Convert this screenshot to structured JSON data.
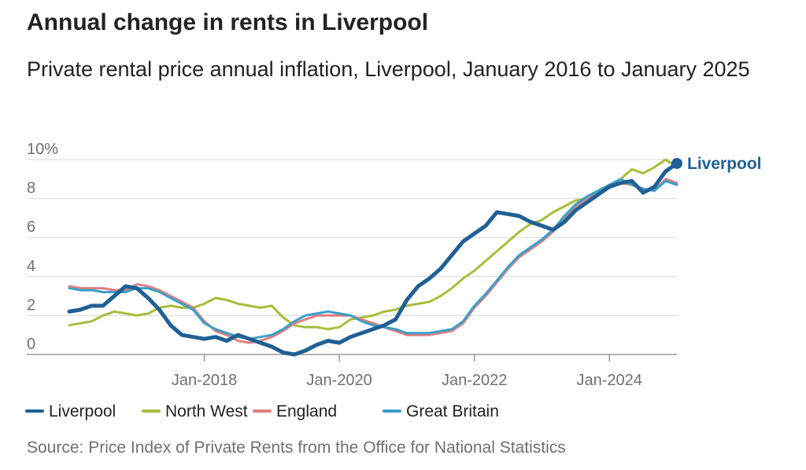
{
  "header": {
    "title": "Annual change in rents in Liverpool",
    "subtitle": "Private rental price annual inflation, Liverpool, January 2016 to January 2025"
  },
  "footer": {
    "source": "Source: Price Index of Private Rents from the Office for National Statistics"
  },
  "chart_data": {
    "type": "line",
    "title": "Annual change in rents in Liverpool",
    "subtitle": "Private rental price annual inflation, Liverpool, January 2016 to January 2025",
    "xlabel": "",
    "ylabel": "",
    "x_range": [
      "2016-01",
      "2025-01"
    ],
    "ylim": [
      0,
      10
    ],
    "y_ticks": [
      0,
      2,
      4,
      6,
      8,
      10
    ],
    "y_tick_labels": [
      "0",
      "2",
      "4",
      "6",
      "8",
      "10%"
    ],
    "x_ticks": [
      "2018-01",
      "2020-01",
      "2022-01",
      "2024-01"
    ],
    "x_tick_labels": [
      "Jan-2018",
      "Jan-2020",
      "Jan-2022",
      "Jan-2024"
    ],
    "grid": "horizontal",
    "legend": "bottom",
    "end_label": "Liverpool",
    "series": [
      {
        "name": "Liverpool",
        "color": "#206095",
        "points": [
          [
            "2016-01",
            2.2
          ],
          [
            "2016-03",
            2.3
          ],
          [
            "2016-05",
            2.5
          ],
          [
            "2016-07",
            2.5
          ],
          [
            "2016-09",
            3.0
          ],
          [
            "2016-11",
            3.5
          ],
          [
            "2017-01",
            3.4
          ],
          [
            "2017-03",
            2.9
          ],
          [
            "2017-05",
            2.3
          ],
          [
            "2017-07",
            1.5
          ],
          [
            "2017-09",
            1.0
          ],
          [
            "2017-11",
            0.9
          ],
          [
            "2018-01",
            0.8
          ],
          [
            "2018-03",
            0.9
          ],
          [
            "2018-05",
            0.7
          ],
          [
            "2018-07",
            1.0
          ],
          [
            "2018-09",
            0.8
          ],
          [
            "2018-11",
            0.6
          ],
          [
            "2019-01",
            0.4
          ],
          [
            "2019-03",
            0.1
          ],
          [
            "2019-05",
            0.0
          ],
          [
            "2019-07",
            0.2
          ],
          [
            "2019-09",
            0.5
          ],
          [
            "2019-11",
            0.7
          ],
          [
            "2020-01",
            0.6
          ],
          [
            "2020-03",
            0.9
          ],
          [
            "2020-05",
            1.1
          ],
          [
            "2020-07",
            1.3
          ],
          [
            "2020-09",
            1.5
          ],
          [
            "2020-11",
            1.8
          ],
          [
            "2021-01",
            2.8
          ],
          [
            "2021-03",
            3.5
          ],
          [
            "2021-05",
            3.9
          ],
          [
            "2021-07",
            4.4
          ],
          [
            "2021-09",
            5.1
          ],
          [
            "2021-11",
            5.8
          ],
          [
            "2022-01",
            6.2
          ],
          [
            "2022-03",
            6.6
          ],
          [
            "2022-05",
            7.3
          ],
          [
            "2022-07",
            7.2
          ],
          [
            "2022-09",
            7.1
          ],
          [
            "2022-11",
            6.8
          ],
          [
            "2023-01",
            6.6
          ],
          [
            "2023-03",
            6.4
          ],
          [
            "2023-05",
            6.8
          ],
          [
            "2023-07",
            7.4
          ],
          [
            "2023-09",
            7.8
          ],
          [
            "2023-11",
            8.2
          ],
          [
            "2024-01",
            8.6
          ],
          [
            "2024-03",
            8.8
          ],
          [
            "2024-05",
            8.9
          ],
          [
            "2024-07",
            8.3
          ],
          [
            "2024-09",
            8.6
          ],
          [
            "2024-11",
            9.4
          ],
          [
            "2025-01",
            9.8
          ]
        ]
      },
      {
        "name": "North West",
        "color": "#a8bd3a",
        "points": [
          [
            "2016-01",
            1.5
          ],
          [
            "2016-03",
            1.6
          ],
          [
            "2016-05",
            1.7
          ],
          [
            "2016-07",
            2.0
          ],
          [
            "2016-09",
            2.2
          ],
          [
            "2016-11",
            2.1
          ],
          [
            "2017-01",
            2.0
          ],
          [
            "2017-03",
            2.1
          ],
          [
            "2017-05",
            2.4
          ],
          [
            "2017-07",
            2.5
          ],
          [
            "2017-09",
            2.4
          ],
          [
            "2017-11",
            2.4
          ],
          [
            "2018-01",
            2.6
          ],
          [
            "2018-03",
            2.9
          ],
          [
            "2018-05",
            2.8
          ],
          [
            "2018-07",
            2.6
          ],
          [
            "2018-09",
            2.5
          ],
          [
            "2018-11",
            2.4
          ],
          [
            "2019-01",
            2.5
          ],
          [
            "2019-03",
            1.9
          ],
          [
            "2019-05",
            1.5
          ],
          [
            "2019-07",
            1.4
          ],
          [
            "2019-09",
            1.4
          ],
          [
            "2019-11",
            1.3
          ],
          [
            "2020-01",
            1.4
          ],
          [
            "2020-03",
            1.8
          ],
          [
            "2020-05",
            1.9
          ],
          [
            "2020-07",
            2.0
          ],
          [
            "2020-09",
            2.2
          ],
          [
            "2020-11",
            2.3
          ],
          [
            "2021-01",
            2.5
          ],
          [
            "2021-03",
            2.6
          ],
          [
            "2021-05",
            2.7
          ],
          [
            "2021-07",
            3.0
          ],
          [
            "2021-09",
            3.4
          ],
          [
            "2021-11",
            3.9
          ],
          [
            "2022-01",
            4.3
          ],
          [
            "2022-03",
            4.8
          ],
          [
            "2022-05",
            5.3
          ],
          [
            "2022-07",
            5.8
          ],
          [
            "2022-09",
            6.3
          ],
          [
            "2022-11",
            6.7
          ],
          [
            "2023-01",
            6.9
          ],
          [
            "2023-03",
            7.3
          ],
          [
            "2023-05",
            7.6
          ],
          [
            "2023-07",
            7.9
          ],
          [
            "2023-09",
            8.0
          ],
          [
            "2023-11",
            8.3
          ],
          [
            "2024-01",
            8.7
          ],
          [
            "2024-03",
            9.0
          ],
          [
            "2024-05",
            9.5
          ],
          [
            "2024-07",
            9.3
          ],
          [
            "2024-09",
            9.6
          ],
          [
            "2024-11",
            10.0
          ],
          [
            "2025-01",
            9.6
          ]
        ]
      },
      {
        "name": "England",
        "color": "#e17d7d",
        "points": [
          [
            "2016-01",
            3.5
          ],
          [
            "2016-03",
            3.4
          ],
          [
            "2016-05",
            3.4
          ],
          [
            "2016-07",
            3.4
          ],
          [
            "2016-09",
            3.3
          ],
          [
            "2016-11",
            3.3
          ],
          [
            "2017-01",
            3.6
          ],
          [
            "2017-03",
            3.5
          ],
          [
            "2017-05",
            3.3
          ],
          [
            "2017-07",
            3.0
          ],
          [
            "2017-09",
            2.7
          ],
          [
            "2017-11",
            2.4
          ],
          [
            "2018-01",
            1.7
          ],
          [
            "2018-03",
            1.2
          ],
          [
            "2018-05",
            1.0
          ],
          [
            "2018-07",
            0.7
          ],
          [
            "2018-09",
            0.6
          ],
          [
            "2018-11",
            0.7
          ],
          [
            "2019-01",
            0.9
          ],
          [
            "2019-03",
            1.2
          ],
          [
            "2019-05",
            1.6
          ],
          [
            "2019-07",
            1.8
          ],
          [
            "2019-09",
            2.0
          ],
          [
            "2019-11",
            2.0
          ],
          [
            "2020-01",
            2.0
          ],
          [
            "2020-03",
            2.0
          ],
          [
            "2020-05",
            1.8
          ],
          [
            "2020-07",
            1.6
          ],
          [
            "2020-09",
            1.4
          ],
          [
            "2020-11",
            1.2
          ],
          [
            "2021-01",
            1.0
          ],
          [
            "2021-03",
            1.0
          ],
          [
            "2021-05",
            1.0
          ],
          [
            "2021-07",
            1.1
          ],
          [
            "2021-09",
            1.2
          ],
          [
            "2021-11",
            1.6
          ],
          [
            "2022-01",
            2.4
          ],
          [
            "2022-03",
            3.0
          ],
          [
            "2022-05",
            3.7
          ],
          [
            "2022-07",
            4.4
          ],
          [
            "2022-09",
            5.0
          ],
          [
            "2022-11",
            5.4
          ],
          [
            "2023-01",
            5.8
          ],
          [
            "2023-03",
            6.3
          ],
          [
            "2023-05",
            7.0
          ],
          [
            "2023-07",
            7.6
          ],
          [
            "2023-09",
            8.0
          ],
          [
            "2023-11",
            8.3
          ],
          [
            "2024-01",
            8.6
          ],
          [
            "2024-03",
            8.8
          ],
          [
            "2024-05",
            8.7
          ],
          [
            "2024-07",
            8.5
          ],
          [
            "2024-09",
            8.4
          ],
          [
            "2024-11",
            9.0
          ],
          [
            "2025-01",
            8.8
          ]
        ]
      },
      {
        "name": "Great Britain",
        "color": "#3aa0c9",
        "points": [
          [
            "2016-01",
            3.4
          ],
          [
            "2016-03",
            3.3
          ],
          [
            "2016-05",
            3.3
          ],
          [
            "2016-07",
            3.2
          ],
          [
            "2016-09",
            3.2
          ],
          [
            "2016-11",
            3.2
          ],
          [
            "2017-01",
            3.4
          ],
          [
            "2017-03",
            3.4
          ],
          [
            "2017-05",
            3.2
          ],
          [
            "2017-07",
            2.9
          ],
          [
            "2017-09",
            2.6
          ],
          [
            "2017-11",
            2.3
          ],
          [
            "2018-01",
            1.6
          ],
          [
            "2018-03",
            1.3
          ],
          [
            "2018-05",
            1.1
          ],
          [
            "2018-07",
            0.9
          ],
          [
            "2018-09",
            0.8
          ],
          [
            "2018-11",
            0.9
          ],
          [
            "2019-01",
            1.0
          ],
          [
            "2019-03",
            1.3
          ],
          [
            "2019-05",
            1.7
          ],
          [
            "2019-07",
            2.0
          ],
          [
            "2019-09",
            2.1
          ],
          [
            "2019-11",
            2.2
          ],
          [
            "2020-01",
            2.1
          ],
          [
            "2020-03",
            2.0
          ],
          [
            "2020-05",
            1.7
          ],
          [
            "2020-07",
            1.5
          ],
          [
            "2020-09",
            1.4
          ],
          [
            "2020-11",
            1.3
          ],
          [
            "2021-01",
            1.1
          ],
          [
            "2021-03",
            1.1
          ],
          [
            "2021-05",
            1.1
          ],
          [
            "2021-07",
            1.2
          ],
          [
            "2021-09",
            1.3
          ],
          [
            "2021-11",
            1.7
          ],
          [
            "2022-01",
            2.5
          ],
          [
            "2022-03",
            3.1
          ],
          [
            "2022-05",
            3.8
          ],
          [
            "2022-07",
            4.5
          ],
          [
            "2022-09",
            5.1
          ],
          [
            "2022-11",
            5.5
          ],
          [
            "2023-01",
            5.9
          ],
          [
            "2023-03",
            6.4
          ],
          [
            "2023-05",
            7.1
          ],
          [
            "2023-07",
            7.7
          ],
          [
            "2023-09",
            8.1
          ],
          [
            "2023-11",
            8.4
          ],
          [
            "2024-01",
            8.7
          ],
          [
            "2024-03",
            9.0
          ],
          [
            "2024-05",
            8.7
          ],
          [
            "2024-07",
            8.5
          ],
          [
            "2024-09",
            8.4
          ],
          [
            "2024-11",
            8.9
          ],
          [
            "2025-01",
            8.7
          ]
        ]
      }
    ]
  }
}
